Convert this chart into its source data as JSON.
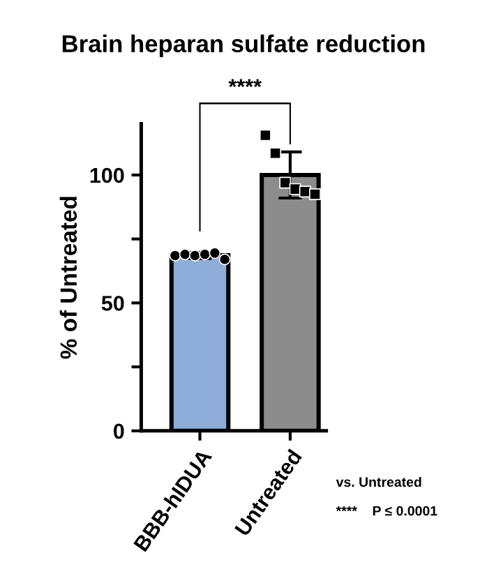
{
  "chart_data": {
    "type": "bar",
    "title": "Brain heparan sulfate reduction",
    "ylabel": "% of Untreated",
    "categories": [
      "BBB-hIDUA",
      "Untreated"
    ],
    "series": [
      {
        "type": "bar",
        "colors": [
          "#8eadd8",
          "#8c8c8c"
        ],
        "values": [
          68.6,
          100
        ],
        "errors": [
          1.2,
          9
        ]
      },
      {
        "type": "scatter",
        "marker": "circle",
        "color": "#000000",
        "x": [
          "BBB-hIDUA",
          "BBB-hIDUA",
          "BBB-hIDUA",
          "BBB-hIDUA",
          "BBB-hIDUA",
          "BBB-hIDUA"
        ],
        "values": [
          68.5,
          69,
          68.5,
          69,
          69.5,
          67
        ]
      },
      {
        "type": "scatter",
        "marker": "square",
        "color": "#000000",
        "x": [
          "Untreated",
          "Untreated",
          "Untreated",
          "Untreated",
          "Untreated",
          "Untreated"
        ],
        "values": [
          115.5,
          108.5,
          97,
          94.5,
          93.5,
          92.5
        ]
      }
    ],
    "ylim": [
      0,
      120
    ],
    "yticks": [
      0,
      {
        "value": 25,
        "label": null
      },
      50,
      {
        "value": 75,
        "label": null
      },
      100
    ],
    "grid": false,
    "legend": false,
    "annotations": [
      "****",
      "vs. Untreated",
      "****    P ≤ 0.0001"
    ]
  }
}
